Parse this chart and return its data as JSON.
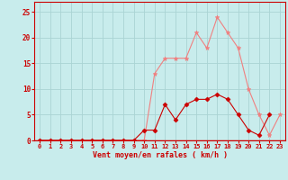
{
  "x": [
    0,
    1,
    2,
    3,
    4,
    5,
    6,
    7,
    8,
    9,
    10,
    11,
    12,
    13,
    14,
    15,
    16,
    17,
    18,
    19,
    20,
    21,
    22,
    23
  ],
  "rafales": [
    0,
    0,
    0,
    0,
    0,
    0,
    0,
    0,
    0,
    0,
    0,
    13,
    16,
    16,
    16,
    21,
    18,
    24,
    21,
    18,
    10,
    5,
    1,
    5
  ],
  "moyen": [
    0,
    0,
    0,
    0,
    0,
    0,
    0,
    0,
    0,
    0,
    2,
    2,
    7,
    4,
    7,
    8,
    8,
    9,
    8,
    5,
    2,
    1,
    5,
    null
  ],
  "color_rafales": "#f08080",
  "color_moyen": "#cc0000",
  "bg_color": "#c8ecec",
  "grid_color": "#aad4d4",
  "xlabel": "Vent moyen/en rafales ( km/h )",
  "ylim": [
    0,
    27
  ],
  "xlim": [
    -0.5,
    23.5
  ],
  "yticks": [
    0,
    5,
    10,
    15,
    20,
    25
  ],
  "xticks": [
    0,
    1,
    2,
    3,
    4,
    5,
    6,
    7,
    8,
    9,
    10,
    11,
    12,
    13,
    14,
    15,
    16,
    17,
    18,
    19,
    20,
    21,
    22,
    23
  ]
}
